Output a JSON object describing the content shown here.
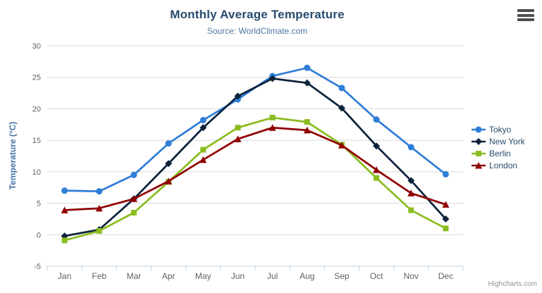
{
  "credits": "Highcharts.com",
  "context_menu": {
    "icon": "hamburger-menu-icon"
  },
  "theme": {
    "background": "#ffffff",
    "title_color": "#274b6d",
    "subtitle_color": "#4d759e",
    "axis_label_color": "#606060",
    "axis_title_color": "#4572a7",
    "grid_color": "#d8d8d8",
    "axis_line_color": "#c0d0e0",
    "legend_text_color": "#274b6d",
    "credits_color": "#909090"
  },
  "chart_data": {
    "type": "line",
    "title": "Monthly Average Temperature",
    "subtitle": "Source: WorldClimate.com",
    "xlabel": "",
    "ylabel": "Temperature (°C)",
    "ylim": [
      -5,
      30
    ],
    "ytick_step": 5,
    "grid": true,
    "legend_position": "right",
    "categories": [
      "Jan",
      "Feb",
      "Mar",
      "Apr",
      "May",
      "Jun",
      "Jul",
      "Aug",
      "Sep",
      "Oct",
      "Nov",
      "Dec"
    ],
    "series": [
      {
        "name": "Tokyo",
        "color": "#2f7ed8",
        "marker": "circle",
        "values": [
          7.0,
          6.9,
          9.5,
          14.5,
          18.2,
          21.5,
          25.2,
          26.5,
          23.3,
          18.3,
          13.9,
          9.6
        ]
      },
      {
        "name": "New York",
        "color": "#0d233a",
        "marker": "diamond",
        "values": [
          -0.2,
          0.8,
          5.7,
          11.3,
          17.0,
          22.0,
          24.8,
          24.1,
          20.1,
          14.1,
          8.6,
          2.5
        ]
      },
      {
        "name": "Berlin",
        "color": "#8bbc21",
        "marker": "square",
        "values": [
          -0.9,
          0.6,
          3.5,
          8.4,
          13.5,
          17.0,
          18.6,
          17.9,
          14.3,
          9.0,
          3.9,
          1.0
        ]
      },
      {
        "name": "London",
        "color": "#910000",
        "marker": "triangle",
        "values": [
          3.9,
          4.2,
          5.7,
          8.5,
          11.9,
          15.2,
          17.0,
          16.6,
          14.2,
          10.3,
          6.6,
          4.8
        ]
      }
    ]
  }
}
